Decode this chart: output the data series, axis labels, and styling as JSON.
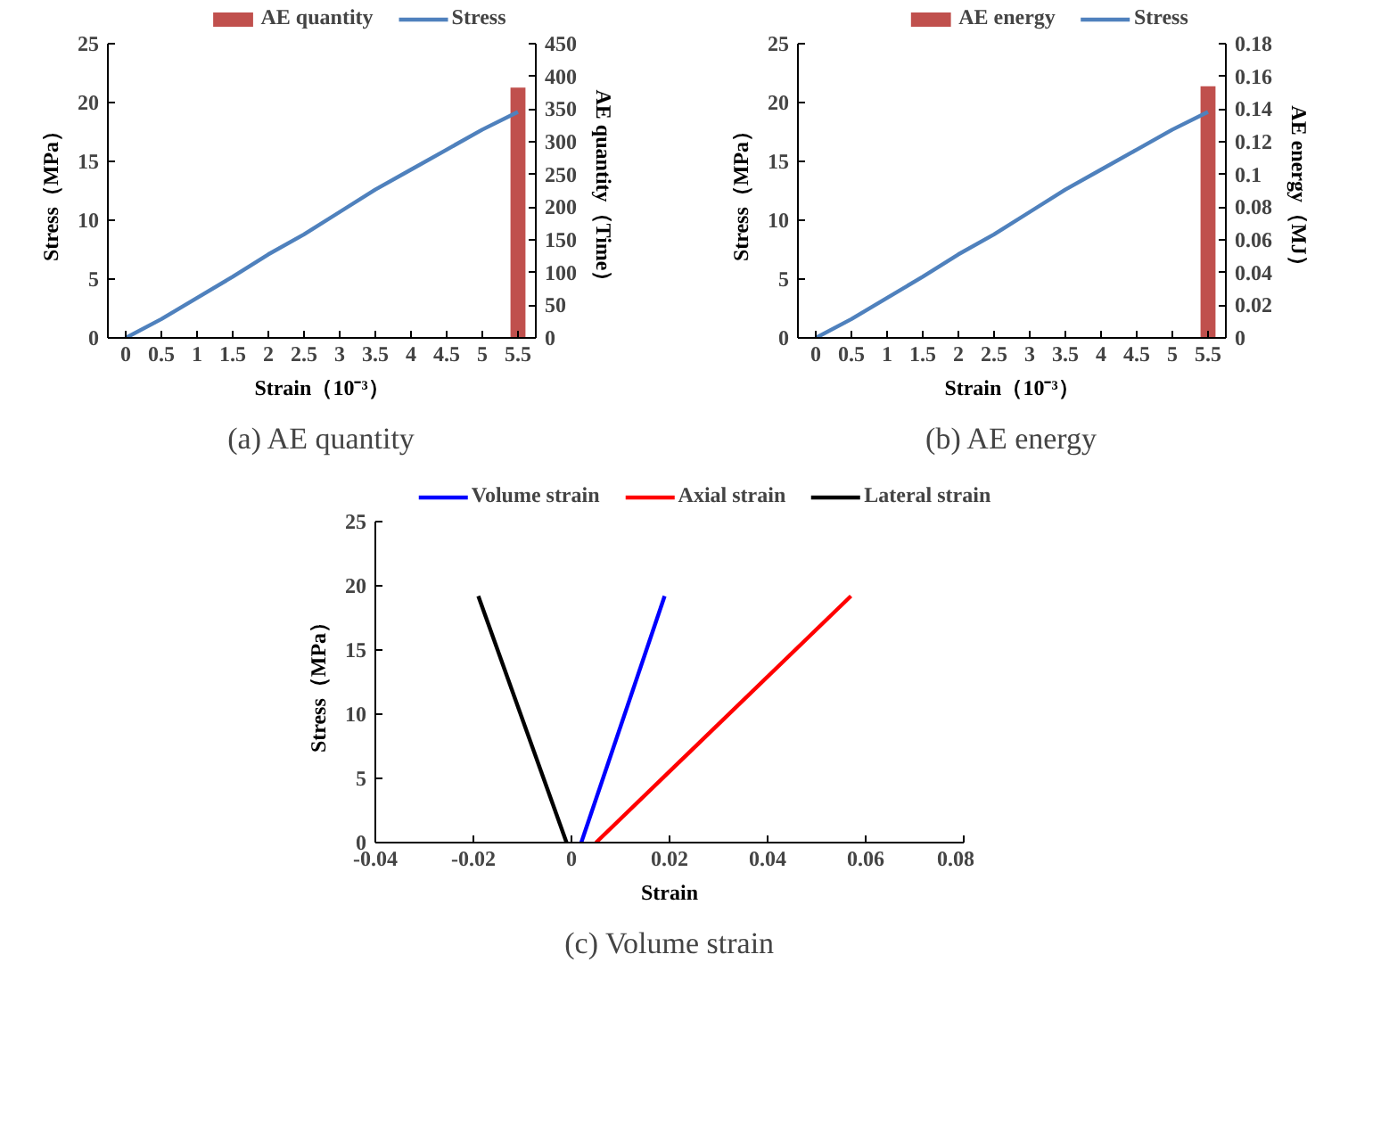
{
  "chart_data": [
    {
      "type": "line",
      "xlabel": "Strain（10⁻³）",
      "ylabel": "Stress（MPa）",
      "y2label": "AE quantity（Time）",
      "x": [
        0,
        0.5,
        1,
        1.5,
        2,
        2.5,
        3,
        3.5,
        4,
        4.5,
        5,
        5.5
      ],
      "xlim": [
        -0.25,
        5.75
      ],
      "xticks": [
        0,
        0.5,
        1,
        1.5,
        2,
        2.5,
        3,
        3.5,
        4,
        4.5,
        5,
        5.5
      ],
      "ylim": [
        0,
        25
      ],
      "yticks": [
        0,
        5,
        10,
        15,
        20,
        25
      ],
      "y2lim": [
        0,
        450
      ],
      "y2ticks": [
        0,
        50,
        100,
        150,
        200,
        250,
        300,
        350,
        400,
        450
      ],
      "legend": "top",
      "annotations": [
        "(a) AE quantity"
      ],
      "series": [
        {
          "name": "AE quantity",
          "type": "bar",
          "axis": "y2",
          "color": "#c0504d",
          "x": [
            5.5
          ],
          "values": [
            383
          ]
        },
        {
          "name": "Stress",
          "type": "line",
          "color": "#4f81bd",
          "values": [
            0,
            1.6,
            3.4,
            5.2,
            7.1,
            8.8,
            10.7,
            12.6,
            14.3,
            16,
            17.7,
            19.2
          ]
        }
      ]
    },
    {
      "type": "line",
      "xlabel": "Strain（10⁻³）",
      "ylabel": "Stress（MPa）",
      "y2label": "AE energy（MJ）",
      "x": [
        0,
        0.5,
        1,
        1.5,
        2,
        2.5,
        3,
        3.5,
        4,
        4.5,
        5,
        5.5
      ],
      "xlim": [
        -0.25,
        5.75
      ],
      "xticks": [
        0,
        0.5,
        1,
        1.5,
        2,
        2.5,
        3,
        3.5,
        4,
        4.5,
        5,
        5.5
      ],
      "ylim": [
        0,
        25
      ],
      "yticks": [
        0,
        5,
        10,
        15,
        20,
        25
      ],
      "y2lim": [
        0,
        0.18
      ],
      "y2ticks": [
        0,
        0.02,
        0.04,
        0.06,
        0.08,
        0.1,
        0.12,
        0.14,
        0.16,
        0.18
      ],
      "legend": "top",
      "annotations": [
        "(b) AE energy"
      ],
      "series": [
        {
          "name": "AE energy",
          "type": "bar",
          "axis": "y2",
          "color": "#c0504d",
          "x": [
            5.5
          ],
          "values": [
            0.154
          ]
        },
        {
          "name": "Stress",
          "type": "line",
          "color": "#4f81bd",
          "values": [
            0,
            1.6,
            3.4,
            5.2,
            7.1,
            8.8,
            10.7,
            12.6,
            14.3,
            16,
            17.7,
            19.2
          ]
        }
      ]
    },
    {
      "type": "line",
      "xlabel": "Strain",
      "ylabel": "Stress（MPa）",
      "xlim": [
        -0.04,
        0.08
      ],
      "xticks": [
        -0.04,
        -0.02,
        0,
        0.02,
        0.04,
        0.06,
        0.08
      ],
      "ylim": [
        0,
        25
      ],
      "yticks": [
        0,
        5,
        10,
        15,
        20,
        25
      ],
      "legend": "top",
      "annotations": [
        "(c) Volume strain"
      ],
      "series": [
        {
          "name": "Volume strain",
          "color": "#0000ff",
          "x": [
            0.002,
            0.019
          ],
          "values": [
            0,
            19.2
          ]
        },
        {
          "name": "Axial strain",
          "color": "#ff0000",
          "x": [
            0.005,
            0.057
          ],
          "values": [
            0,
            19.2
          ]
        },
        {
          "name": "Lateral strain",
          "color": "#000000",
          "x": [
            -0.001,
            -0.019
          ],
          "values": [
            0,
            19.2
          ]
        }
      ]
    }
  ]
}
